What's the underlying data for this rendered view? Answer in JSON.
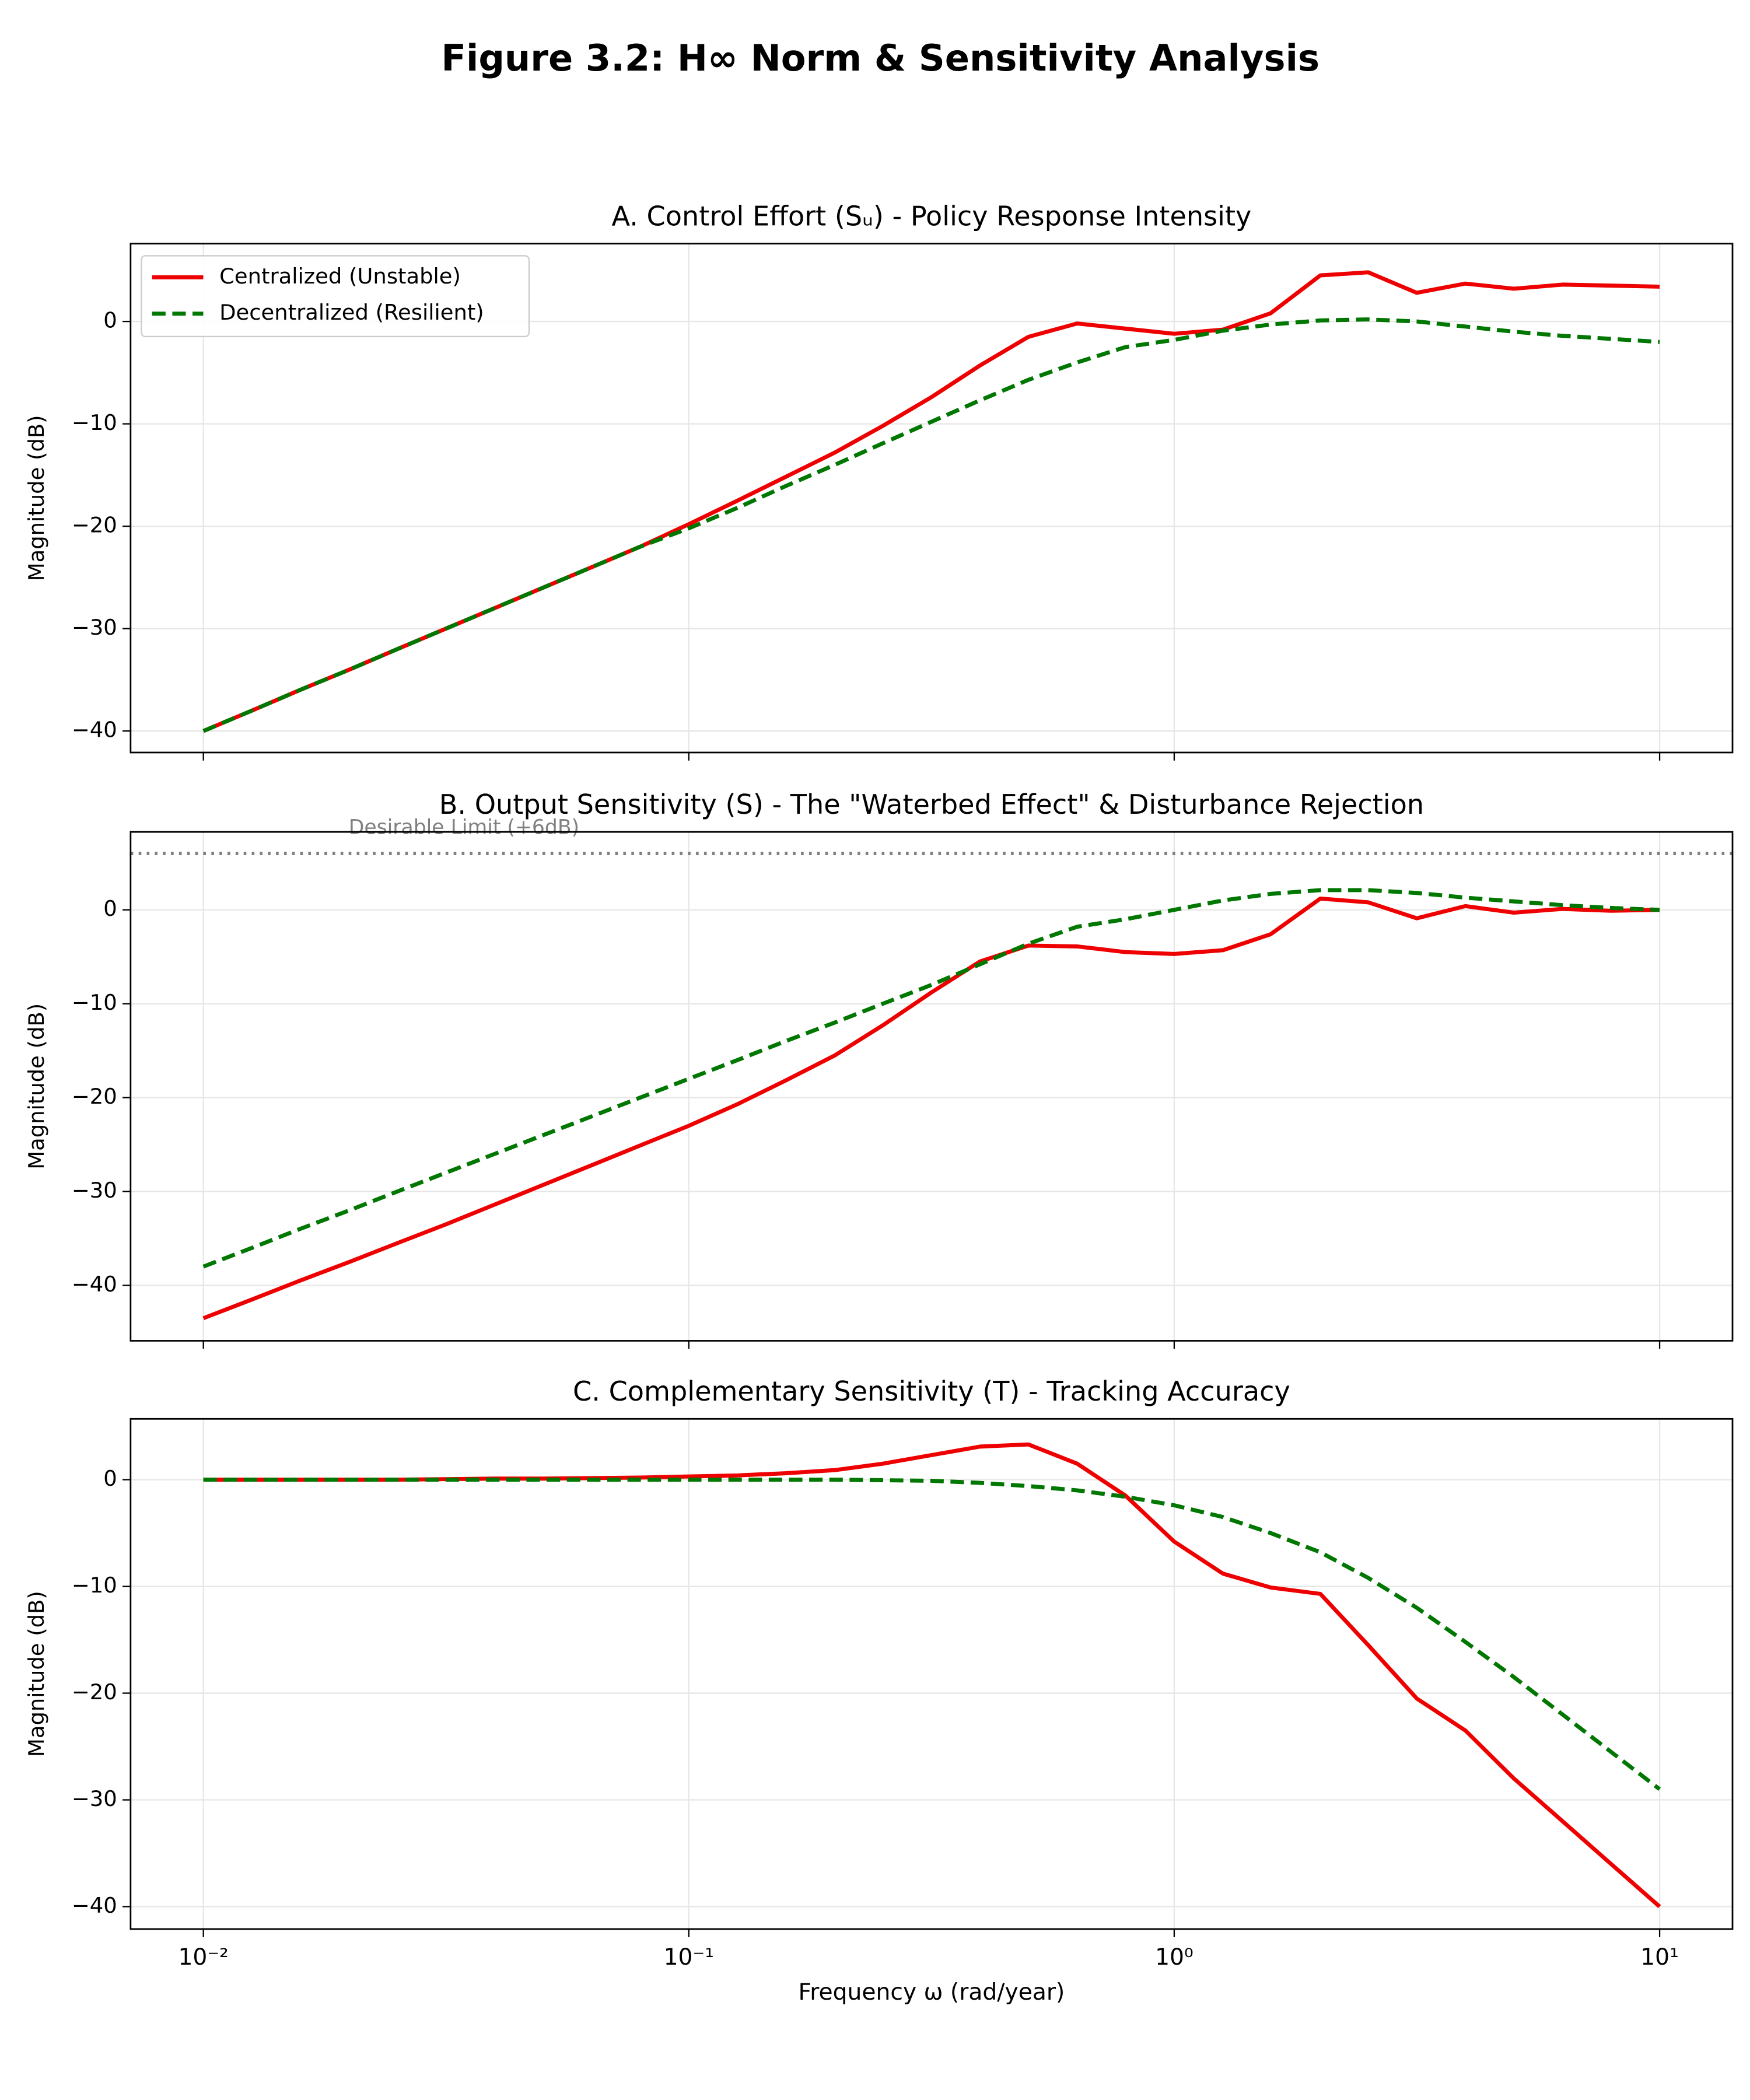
{
  "title": "Figure 3.2: H∞ Norm & Sensitivity Analysis",
  "chart_data": [
    {
      "type": "line",
      "title": "A. Control Effort (Sᵤ) - Policy Response Intensity",
      "y_label": "Magnitude (dB)",
      "xscale": "log",
      "grid": true,
      "legend": "upper left",
      "x": [
        0.01,
        0.0126,
        0.0158,
        0.02,
        0.0251,
        0.0316,
        0.0398,
        0.0501,
        0.0631,
        0.0794,
        0.1,
        0.126,
        0.158,
        0.2,
        0.251,
        0.316,
        0.398,
        0.501,
        0.631,
        0.794,
        1,
        1.26,
        1.58,
        2,
        2.51,
        3.16,
        3.98,
        5.01,
        6.31,
        7.94,
        10
      ],
      "series": [
        {
          "name": "Centralized (Unstable)",
          "color": "#ee0000",
          "linestyle": "solid",
          "values": [
            -40,
            -38,
            -36,
            -34,
            -32,
            -30,
            -28,
            -26,
            -24,
            -22,
            -19.8,
            -17.5,
            -15.2,
            -12.8,
            -10.2,
            -7.4,
            -4.3,
            -1.5,
            -0.2,
            -0.7,
            -1.2,
            -0.8,
            0.8,
            4.5,
            4.8,
            2.8,
            3.7,
            3.2,
            3.6,
            3.5,
            3.4
          ]
        },
        {
          "name": "Decentralized (Resilient)",
          "color": "#007700",
          "linestyle": "dashed",
          "values": [
            -40,
            -38,
            -36,
            -34,
            -32,
            -30,
            -28,
            -26,
            -24,
            -22,
            -20.2,
            -18.2,
            -16.1,
            -14,
            -11.9,
            -9.8,
            -7.7,
            -5.7,
            -4,
            -2.5,
            -1.8,
            -0.9,
            -0.3,
            0.1,
            0.2,
            0,
            -0.5,
            -1,
            -1.4,
            -1.7,
            -2
          ]
        }
      ],
      "xlim": [
        0.00708,
        14.13
      ],
      "xticks": [
        0.01,
        0.1,
        1,
        10
      ],
      "ylim": [
        -42.1,
        7.6
      ],
      "yticks": [
        {
          "value": -40,
          "label": "−40"
        },
        {
          "value": -30,
          "label": "−30"
        },
        {
          "value": -20,
          "label": "−20"
        },
        {
          "value": -10,
          "label": "−10"
        },
        0
      ]
    },
    {
      "type": "line",
      "title": "B. Output Sensitivity (S) - The \"Waterbed Effect\" & Disturbance Rejection",
      "y_label": "Magnitude (dB)",
      "xscale": "log",
      "grid": true,
      "hlines": [
        {
          "value": 6,
          "label": "Desirable Limit (+6dB)",
          "color": "#808080"
        }
      ],
      "x": [
        0.01,
        0.0126,
        0.0158,
        0.02,
        0.0251,
        0.0316,
        0.0398,
        0.0501,
        0.0631,
        0.0794,
        0.1,
        0.126,
        0.158,
        0.2,
        0.251,
        0.316,
        0.398,
        0.501,
        0.631,
        0.794,
        1,
        1.26,
        1.58,
        2,
        2.51,
        3.16,
        3.98,
        5.01,
        6.31,
        7.94,
        10
      ],
      "series": [
        {
          "name": "Centralized (Unstable)",
          "color": "#ee0000",
          "linestyle": "solid",
          "values": [
            -43.5,
            -41.5,
            -39.5,
            -37.5,
            -35.5,
            -33.5,
            -31.4,
            -29.3,
            -27.2,
            -25.1,
            -23,
            -20.7,
            -18.2,
            -15.5,
            -12.3,
            -8.8,
            -5.5,
            -3.8,
            -3.9,
            -4.5,
            -4.7,
            -4.3,
            -2.6,
            1.2,
            0.8,
            -0.9,
            0.4,
            -0.3,
            0.1,
            -0.1,
            0
          ]
        },
        {
          "name": "Decentralized (Resilient)",
          "color": "#007700",
          "linestyle": "dashed",
          "values": [
            -38,
            -36,
            -34,
            -32,
            -30,
            -28,
            -26,
            -24,
            -22,
            -20,
            -18,
            -16,
            -14,
            -12,
            -10,
            -8,
            -5.8,
            -3.6,
            -1.8,
            -1,
            0,
            1,
            1.7,
            2.1,
            2.1,
            1.8,
            1.3,
            0.9,
            0.5,
            0.2,
            0
          ]
        }
      ],
      "xlim": [
        0.00708,
        14.13
      ],
      "xticks": [
        0.01,
        0.1,
        1,
        10
      ],
      "ylim": [
        -45.9,
        8.3
      ],
      "yticks": [
        {
          "value": -40,
          "label": "−40"
        },
        {
          "value": -30,
          "label": "−30"
        },
        {
          "value": -20,
          "label": "−20"
        },
        {
          "value": -10,
          "label": "−10"
        },
        0
      ]
    },
    {
      "type": "line",
      "title": "C. Complementary Sensitivity (T) - Tracking Accuracy",
      "y_label": "Magnitude (dB)",
      "x_label": "Frequency ω (rad/year)",
      "xscale": "log",
      "grid": true,
      "x": [
        0.01,
        0.0126,
        0.0158,
        0.02,
        0.0251,
        0.0316,
        0.0398,
        0.0501,
        0.0631,
        0.0794,
        0.1,
        0.126,
        0.158,
        0.2,
        0.251,
        0.316,
        0.398,
        0.501,
        0.631,
        0.794,
        1,
        1.26,
        1.58,
        2,
        2.51,
        3.16,
        3.98,
        5.01,
        6.31,
        7.94,
        10
      ],
      "series": [
        {
          "name": "Centralized (Unstable)",
          "color": "#ee0000",
          "linestyle": "solid",
          "values": [
            0,
            0,
            0,
            0,
            0,
            0.05,
            0.1,
            0.1,
            0.15,
            0.2,
            0.3,
            0.4,
            0.6,
            0.9,
            1.5,
            2.3,
            3.1,
            3.3,
            1.5,
            -1.5,
            -5.8,
            -8.8,
            -10.1,
            -10.7,
            -15.5,
            -20.5,
            -23.5,
            -28,
            -32,
            -36,
            -40
          ]
        },
        {
          "name": "Decentralized (Resilient)",
          "color": "#007700",
          "linestyle": "dashed",
          "values": [
            0,
            0,
            0,
            0,
            0,
            0,
            0,
            0,
            0,
            0,
            0,
            0,
            0,
            0,
            -0.05,
            -0.1,
            -0.3,
            -0.6,
            -1,
            -1.6,
            -2.4,
            -3.5,
            -5,
            -6.8,
            -9.2,
            -12,
            -15.2,
            -18.5,
            -22,
            -25.5,
            -29
          ]
        }
      ],
      "xlim": [
        0.00708,
        14.13
      ],
      "xticks": [
        {
          "value": 0.01,
          "label": "10⁻²"
        },
        {
          "value": 0.1,
          "label": "10⁻¹"
        },
        {
          "value": 1,
          "label": "10⁰"
        },
        {
          "value": 10,
          "label": "10¹"
        }
      ],
      "ylim": [
        -42.1,
        5.7
      ],
      "yticks": [
        {
          "value": -40,
          "label": "−40"
        },
        {
          "value": -30,
          "label": "−30"
        },
        {
          "value": -20,
          "label": "−20"
        },
        {
          "value": -10,
          "label": "−10"
        },
        0
      ]
    }
  ]
}
